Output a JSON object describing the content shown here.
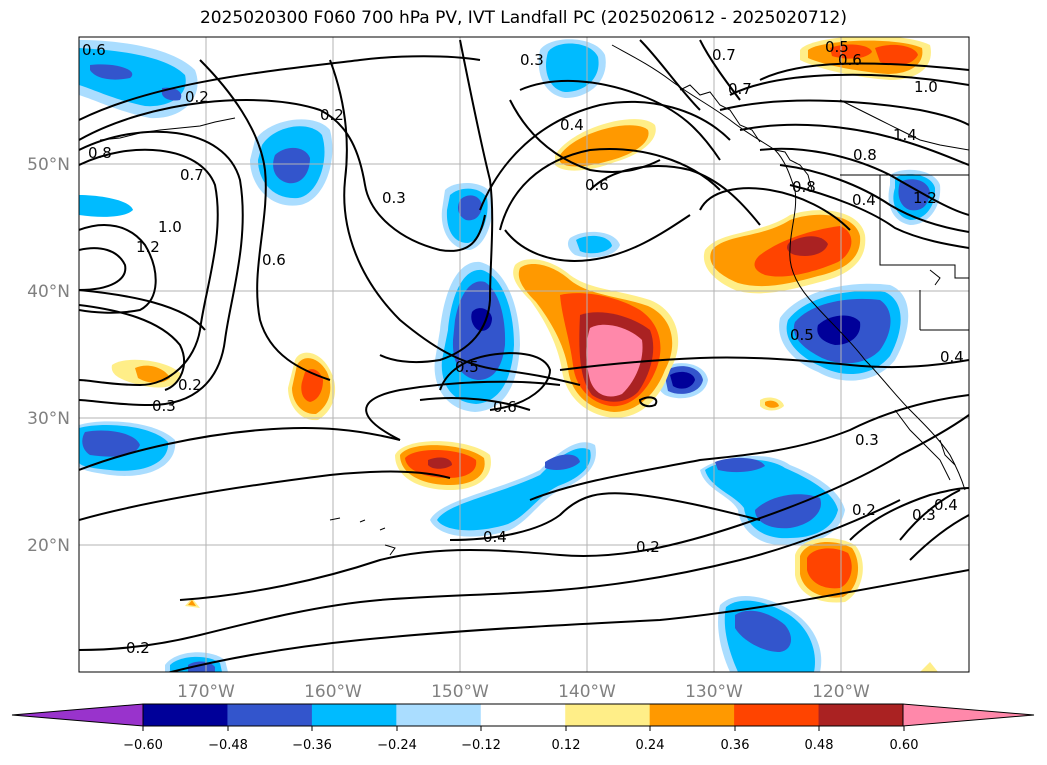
{
  "title": "2025020300 F060 700 hPa PV, IVT Landfall PC (2025020612 - 2025020712)",
  "map": {
    "lon_range": [
      -180,
      -110
    ],
    "lat_range": [
      10,
      60
    ],
    "lon_ticks": [
      "170°W",
      "160°W",
      "150°W",
      "140°W",
      "130°W",
      "120°W"
    ],
    "lat_ticks": [
      "20°N",
      "30°N",
      "40°N",
      "50°N"
    ],
    "gridlines": true
  },
  "contour_labels": [
    "0.6",
    "0.3",
    "0.5",
    "0.6",
    "0.7",
    "0.7",
    "1.0",
    "0.4",
    "0.2",
    "0.8",
    "0.7",
    "1.0",
    "1.2",
    "0.6",
    "0.3",
    "0.6",
    "0.8",
    "0.8",
    "1.4",
    "0.4",
    "1.2",
    "0.5",
    "0.5",
    "0.6",
    "0.4",
    "0.2",
    "0.3",
    "0.3",
    "0.2",
    "0.3",
    "0.4",
    "0.2",
    "0.4",
    "0.2",
    "0.2"
  ],
  "colorbar": {
    "ticks": [
      "−0.60",
      "−0.48",
      "−0.36",
      "−0.24",
      "−0.12",
      "0.12",
      "0.24",
      "0.36",
      "0.48",
      "0.60"
    ],
    "colors": [
      "#9933cc",
      "#000099",
      "#3355cc",
      "#00bbff",
      "#aaddff",
      "#ffffff",
      "#ffee88",
      "#ff9900",
      "#ff4400",
      "#aa2222",
      "#ff88aa"
    ],
    "extend": "both"
  }
}
